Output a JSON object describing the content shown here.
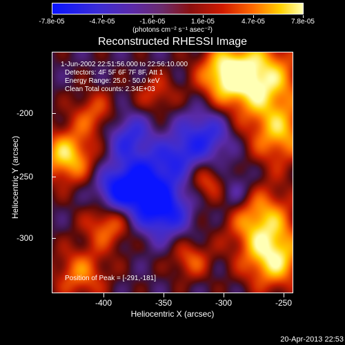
{
  "colorbar": {
    "ticks": [
      "-7.8e-05",
      "-4.7e-05",
      "-1.6e-05",
      "1.6e-05",
      "4.7e-05",
      "7.8e-05"
    ],
    "units": "(photons cm⁻² s⁻¹ asec⁻²)"
  },
  "title": "Reconstructed RHESSI Image",
  "info": {
    "line1": "1-Jun-2002 22:51:56.000 to 22:56:10.000",
    "line2": "Detectors: 4F 5F 6F 7F 8F, Att 1",
    "line3": "Energy Range: 25.0 - 50.0 keV",
    "line4": "Clean     Total counts: 2.34E+03",
    "peak": "Position of Peak = [-291,-181]"
  },
  "axes": {
    "xlabel": "Heliocentric X (arcsec)",
    "ylabel": "Heliocentric Y (arcsec)",
    "xticks": [
      "-400",
      "-350",
      "-300",
      "-250"
    ],
    "yticks": [
      "-200",
      "-250",
      "-300"
    ]
  },
  "footer": "20-Apr-2013 22:53",
  "chart_data": {
    "type": "heatmap",
    "title": "Reconstructed RHESSI Image",
    "xlabel": "Heliocentric X (arcsec)",
    "ylabel": "Heliocentric Y (arcsec)",
    "xlim": [
      -445,
      -245
    ],
    "ylim": [
      -340,
      -180
    ],
    "zlim": [
      -7.8e-05,
      7.8e-05
    ],
    "peak": [
      -291,
      -181
    ]
  }
}
